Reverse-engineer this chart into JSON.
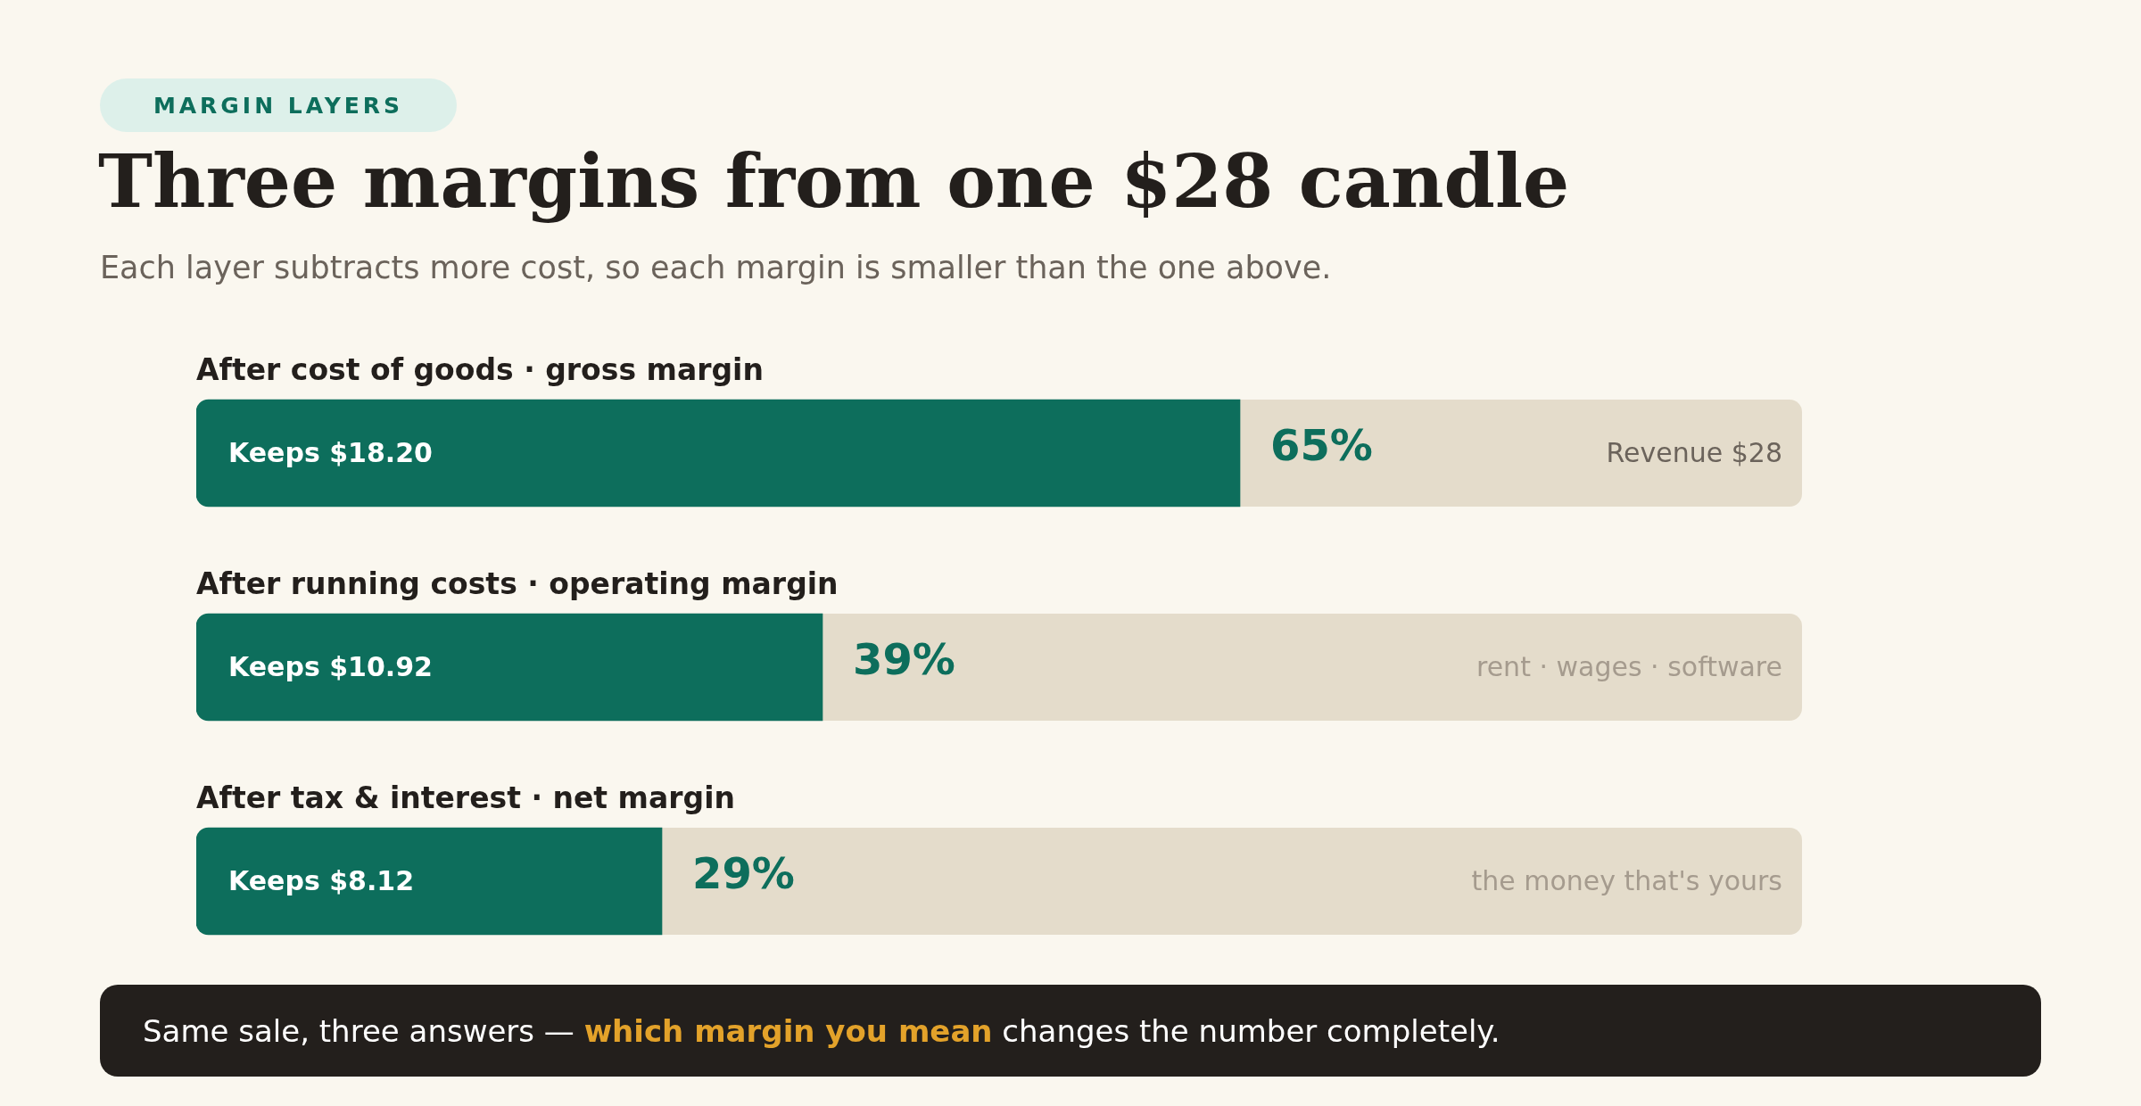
{
  "chart_data": {
    "type": "bar",
    "orientation": "horizontal",
    "title": "Three margins from one $28 candle",
    "subtitle": "Each layer subtracts more cost, so each margin is smaller than the one above.",
    "categories": [
      "After cost of goods · gross margin",
      "After running costs · operating margin",
      "After tax & interest · net margin"
    ],
    "values": [
      65,
      39,
      29
    ],
    "color": "#0d6e5c",
    "value_labels": [
      "65%",
      "39%",
      "29%"
    ],
    "xlim": [
      0,
      100
    ],
    "tick_labels": false,
    "grid": false,
    "legend": false,
    "annotations": [
      "MARGIN LAYERS",
      "Same sale, three answers — ",
      "which margin you mean",
      " changes the number completely.",
      "Keeps $18.20",
      "Keeps $10.92",
      "Keeps $8.12",
      "Revenue $28",
      "rent · wages · software",
      "the money that's yours"
    ]
  }
}
